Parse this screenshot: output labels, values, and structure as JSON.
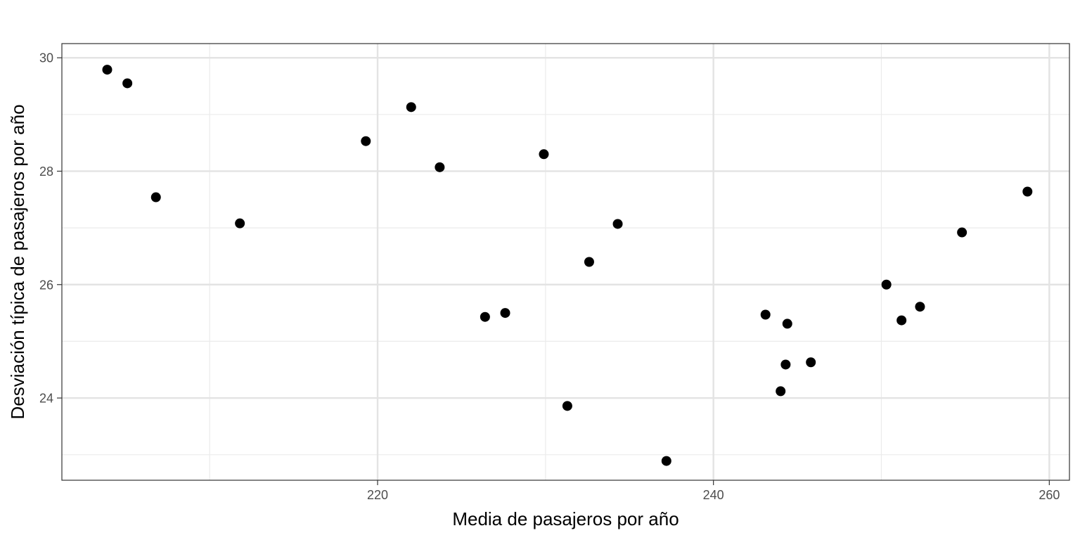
{
  "chart_data": {
    "type": "scatter",
    "title": "",
    "xlabel": "Media de pasajeros por año",
    "ylabel": "Desviación típica de pasajeros por año",
    "xlim": [
      201.2,
      261.2
    ],
    "ylim": [
      22.55,
      30.25
    ],
    "x_ticks": [
      220,
      240,
      260
    ],
    "x_tick_labels": [
      "220",
      "240",
      "260"
    ],
    "x_minor_ticks": [
      210,
      230,
      250
    ],
    "y_ticks": [
      24,
      26,
      28,
      30
    ],
    "y_tick_labels": [
      "24",
      "26",
      "28",
      "30"
    ],
    "y_minor_ticks": [
      23,
      25,
      27,
      29
    ],
    "grid": true,
    "legend": "none",
    "point_color": "#000000",
    "series": [
      {
        "points": [
          {
            "x": 203.9,
            "y": 29.79
          },
          {
            "x": 205.1,
            "y": 29.55
          },
          {
            "x": 206.8,
            "y": 27.54
          },
          {
            "x": 211.8,
            "y": 27.08
          },
          {
            "x": 219.3,
            "y": 28.53
          },
          {
            "x": 222.0,
            "y": 29.13
          },
          {
            "x": 223.7,
            "y": 28.07
          },
          {
            "x": 226.4,
            "y": 25.43
          },
          {
            "x": 227.6,
            "y": 25.5
          },
          {
            "x": 229.9,
            "y": 28.3
          },
          {
            "x": 231.3,
            "y": 23.86
          },
          {
            "x": 232.6,
            "y": 26.4
          },
          {
            "x": 234.3,
            "y": 27.07
          },
          {
            "x": 237.2,
            "y": 22.89
          },
          {
            "x": 243.1,
            "y": 25.47
          },
          {
            "x": 244.0,
            "y": 24.12
          },
          {
            "x": 244.3,
            "y": 24.59
          },
          {
            "x": 244.4,
            "y": 25.31
          },
          {
            "x": 245.8,
            "y": 24.63
          },
          {
            "x": 250.3,
            "y": 26.0
          },
          {
            "x": 251.2,
            "y": 25.37
          },
          {
            "x": 252.3,
            "y": 25.61
          },
          {
            "x": 254.8,
            "y": 26.92
          },
          {
            "x": 258.7,
            "y": 27.64
          }
        ]
      }
    ]
  }
}
